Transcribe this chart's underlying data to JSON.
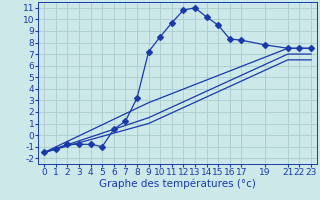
{
  "xlabel": "Graphe des températures (°c)",
  "bg_color": "#cce8e8",
  "grid_color": "#aacccc",
  "line_color": "#1a3aaa",
  "xlim": [
    -0.5,
    23.5
  ],
  "ylim": [
    -2.5,
    11.5
  ],
  "xticks": [
    0,
    1,
    2,
    3,
    4,
    5,
    6,
    7,
    8,
    9,
    10,
    11,
    12,
    13,
    14,
    15,
    16,
    17,
    19,
    21,
    22,
    23
  ],
  "yticks": [
    -2,
    -1,
    0,
    1,
    2,
    3,
    4,
    5,
    6,
    7,
    8,
    9,
    10,
    11
  ],
  "curve1": {
    "x": [
      0,
      1,
      2,
      3,
      4,
      5,
      6,
      7,
      8,
      9,
      10,
      11,
      12,
      13,
      14,
      15,
      16,
      17,
      19,
      21,
      22,
      23
    ],
    "y": [
      -1.5,
      -1.2,
      -0.8,
      -0.8,
      -0.8,
      -1.0,
      0.5,
      1.2,
      3.2,
      7.2,
      8.5,
      9.7,
      10.8,
      11.0,
      10.2,
      9.5,
      8.3,
      8.2,
      7.8,
      7.5,
      7.5,
      7.5
    ]
  },
  "line1": {
    "x": [
      0,
      9,
      21,
      22,
      23
    ],
    "y": [
      -1.5,
      2.8,
      7.5,
      7.5,
      7.5
    ]
  },
  "line2": {
    "x": [
      0,
      9,
      21,
      22,
      23
    ],
    "y": [
      -1.5,
      1.5,
      7.0,
      7.0,
      7.0
    ]
  },
  "line3": {
    "x": [
      0,
      9,
      21,
      22,
      23
    ],
    "y": [
      -1.5,
      1.0,
      6.5,
      6.5,
      6.5
    ]
  },
  "xlabel_fontsize": 7.5,
  "tick_fontsize": 6.5
}
